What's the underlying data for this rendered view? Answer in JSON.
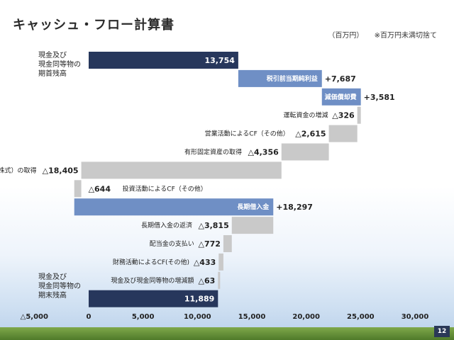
{
  "title": "キャッシュ・フロー計算書",
  "unit_note": "（百万円）",
  "rounding_note": "※百万円未満切捨て",
  "page_number": "12",
  "colors": {
    "navy": "#27375c",
    "blue": "#6f8fc5",
    "gray": "#c9c9c9",
    "lightgray": "#d9d9d9"
  },
  "chart_data": {
    "type": "waterfall",
    "title": "",
    "xlabel": "",
    "ylabel": "",
    "xlim": [
      -5000,
      30000
    ],
    "x_ticks": [
      -5000,
      0,
      5000,
      10000,
      15000,
      20000,
      25000,
      30000
    ],
    "x_tick_labels": [
      "△5,000",
      "0",
      "5,000",
      "10,000",
      "15,000",
      "20,000",
      "25,000",
      "30,000"
    ],
    "side_labels": {
      "start": [
        "現金及び",
        "現金同等物の",
        "期首残高"
      ],
      "end": [
        "現金及び",
        "現金同等物の",
        "期末残高"
      ]
    },
    "items": [
      {
        "label": "",
        "start": 0,
        "end": 13754,
        "value_label": "13,754",
        "kind": "total",
        "color": "navy"
      },
      {
        "label": "税引前当期純利益",
        "start": 13754,
        "end": 21441,
        "value_label": "+7,687",
        "kind": "increase",
        "color": "blue"
      },
      {
        "label": "減価償却費",
        "start": 21441,
        "end": 25022,
        "value_label": "+3,581",
        "kind": "increase",
        "color": "blue"
      },
      {
        "label": "運転資金の増減",
        "start": 25022,
        "end": 24696,
        "value_label": "△326",
        "kind": "decrease",
        "color": "gray"
      },
      {
        "label": "営業活動によるCF（その他）",
        "start": 24696,
        "end": 22081,
        "value_label": "△2,615",
        "kind": "decrease",
        "color": "gray"
      },
      {
        "label": "有形固定資産の取得",
        "start": 22081,
        "end": 17725,
        "value_label": "△4,356",
        "kind": "decrease",
        "color": "gray"
      },
      {
        "label": "子会社株式（CVI株式）の取得",
        "start": 17725,
        "end": -680,
        "value_label": "△18,405",
        "kind": "decrease",
        "color": "gray"
      },
      {
        "label": "投資活動によるCF（その他）",
        "start": -680,
        "end": -1324,
        "value_label": "△644",
        "kind": "decrease",
        "color": "gray"
      },
      {
        "label": "長期借入金",
        "start": -1324,
        "end": 16973,
        "value_label": "+18,297",
        "kind": "increase",
        "color": "blue"
      },
      {
        "label": "長期借入金の返済",
        "start": 16973,
        "end": 13158,
        "value_label": "△3,815",
        "kind": "decrease",
        "color": "gray"
      },
      {
        "label": "配当金の支払い",
        "start": 13158,
        "end": 12386,
        "value_label": "△772",
        "kind": "decrease",
        "color": "gray"
      },
      {
        "label": "財務活動によるCF(その他)",
        "start": 12386,
        "end": 11953,
        "value_label": "△433",
        "kind": "decrease",
        "color": "gray"
      },
      {
        "label": "現金及び現金同等物の増減額",
        "start": 11953,
        "end": 11890,
        "value_label": "△63",
        "kind": "decrease",
        "color": "gray"
      },
      {
        "label": "",
        "start": 0,
        "end": 11889,
        "value_label": "11,889",
        "kind": "total",
        "color": "navy"
      }
    ]
  }
}
